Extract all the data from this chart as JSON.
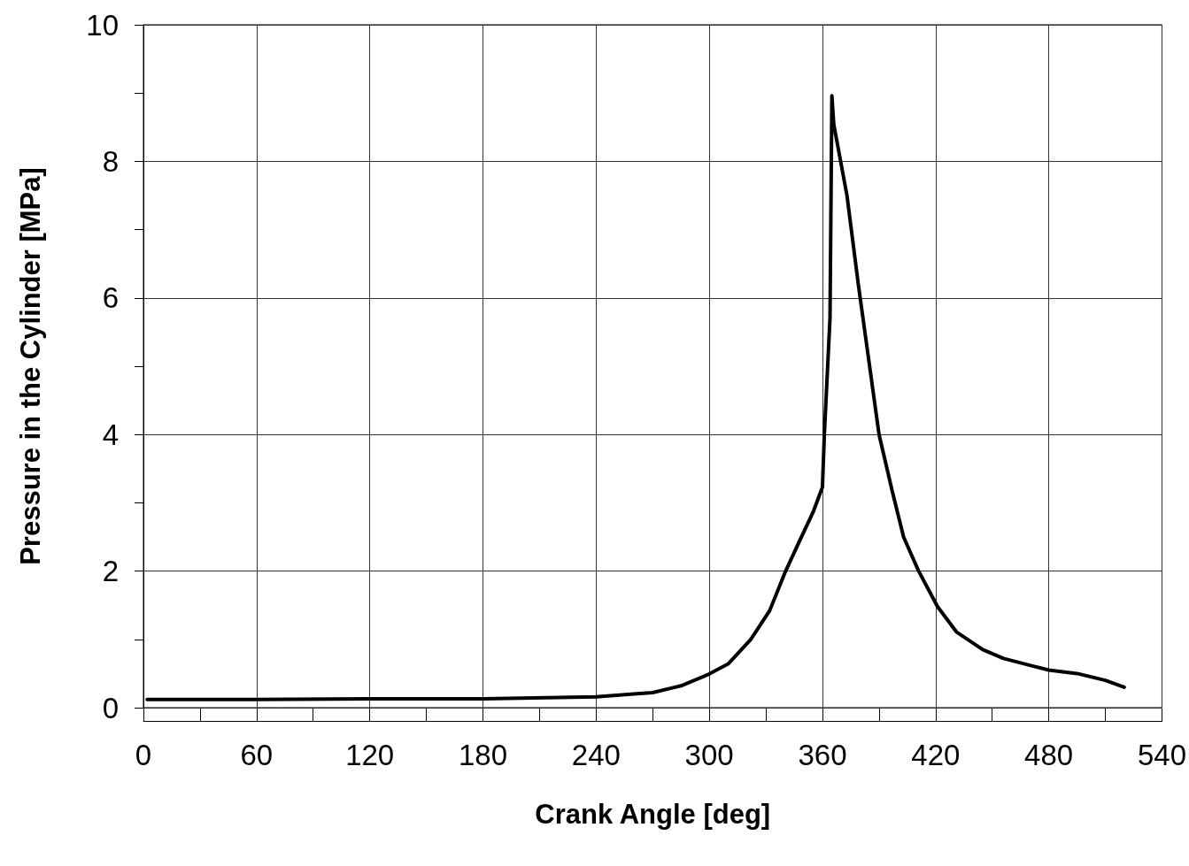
{
  "chart_data": {
    "type": "line",
    "xlabel": "Crank Angle [deg]",
    "ylabel": "Pressure in the Cylinder [MPa]",
    "xlim": [
      0,
      540
    ],
    "ylim": [
      0,
      10
    ],
    "xticks": [
      0,
      {
        "value": 30,
        "label": null
      },
      60,
      {
        "value": 90,
        "label": null
      },
      120,
      {
        "value": 150,
        "label": null
      },
      180,
      {
        "value": 210,
        "label": null
      },
      240,
      {
        "value": 270,
        "label": null
      },
      300,
      {
        "value": 330,
        "label": null
      },
      360,
      {
        "value": 390,
        "label": null
      },
      420,
      {
        "value": 450,
        "label": null
      },
      480,
      {
        "value": 510,
        "label": null
      },
      540
    ],
    "yticks": [
      0,
      {
        "value": 1,
        "label": null
      },
      2,
      {
        "value": 3,
        "label": null
      },
      4,
      {
        "value": 5,
        "label": null
      },
      6,
      {
        "value": 7,
        "label": null
      },
      8,
      {
        "value": 9,
        "label": null
      },
      10
    ],
    "grid": true,
    "marker": "none",
    "line_style": "solid",
    "series": [
      {
        "color": "#000000",
        "x": [
          2,
          60,
          120,
          180,
          240,
          260,
          270,
          285,
          299,
          310,
          322,
          332,
          340,
          348,
          355,
          360,
          361,
          364,
          365,
          366,
          373,
          379,
          384,
          390,
          397,
          403,
          411,
          421,
          431,
          445,
          456,
          470,
          480,
          495,
          510,
          520
        ],
        "values": [
          0.12,
          0.12,
          0.13,
          0.13,
          0.16,
          0.2,
          0.22,
          0.32,
          0.48,
          0.64,
          1.0,
          1.42,
          1.97,
          2.45,
          2.86,
          3.23,
          4.0,
          5.7,
          8.96,
          8.54,
          7.5,
          6.2,
          5.2,
          4.0,
          3.17,
          2.5,
          2.0,
          1.48,
          1.11,
          0.85,
          0.72,
          0.62,
          0.55,
          0.5,
          0.4,
          0.3
        ]
      }
    ]
  }
}
